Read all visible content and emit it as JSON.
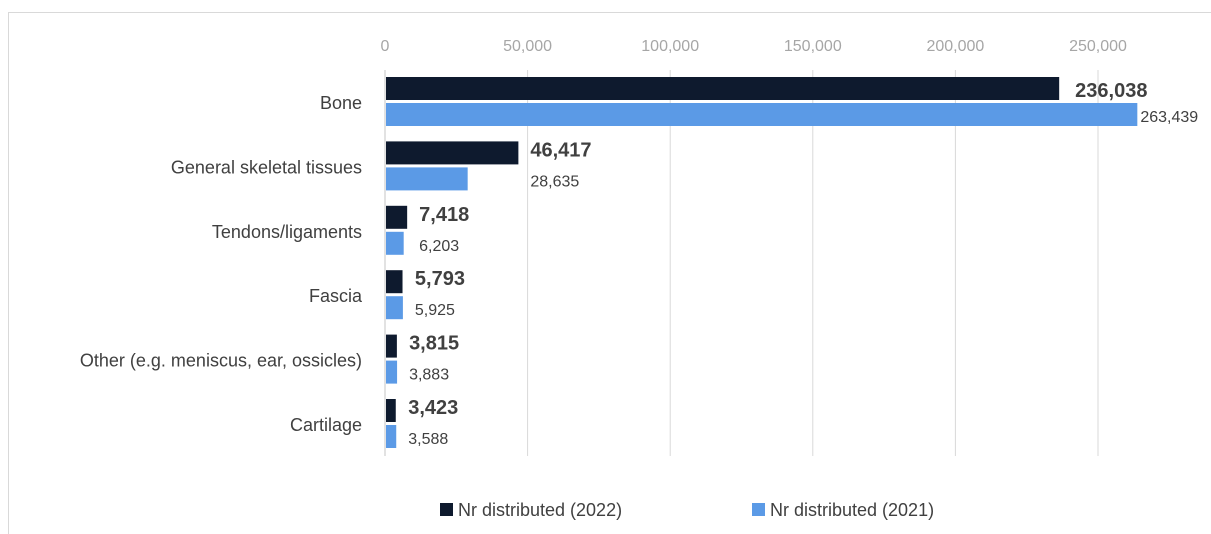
{
  "chart_data": {
    "type": "bar",
    "orientation": "horizontal",
    "title": "",
    "xlabel": "",
    "ylabel": "",
    "xlim": [
      0,
      280000
    ],
    "x_ticks": [
      "0",
      "50,000",
      "100,000",
      "150,000",
      "200,000",
      "250,000"
    ],
    "x_tick_values": [
      0,
      50000,
      100000,
      150000,
      200000,
      250000
    ],
    "grid": "vertical",
    "legend_position": "bottom",
    "categories": [
      "Bone",
      "General skeletal tissues",
      "Tendons/ligaments",
      "Fascia",
      "Other (e.g. meniscus, ear, ossicles)",
      "Cartilage"
    ],
    "series": [
      {
        "name": "Nr distributed (2022)",
        "color": "#0e1a2e",
        "values": [
          236038,
          46417,
          7418,
          5793,
          3815,
          3423
        ],
        "labels": [
          "236,038",
          "46,417",
          "7,418",
          "5,793",
          "3,815",
          "3,423"
        ]
      },
      {
        "name": "Nr distributed (2021)",
        "color": "#5b9ae6",
        "values": [
          263439,
          28635,
          6203,
          5925,
          3883,
          3588
        ],
        "labels": [
          "263,439",
          "28,635",
          "6,203",
          "5,925",
          "3,883",
          "3,588"
        ]
      }
    ]
  }
}
